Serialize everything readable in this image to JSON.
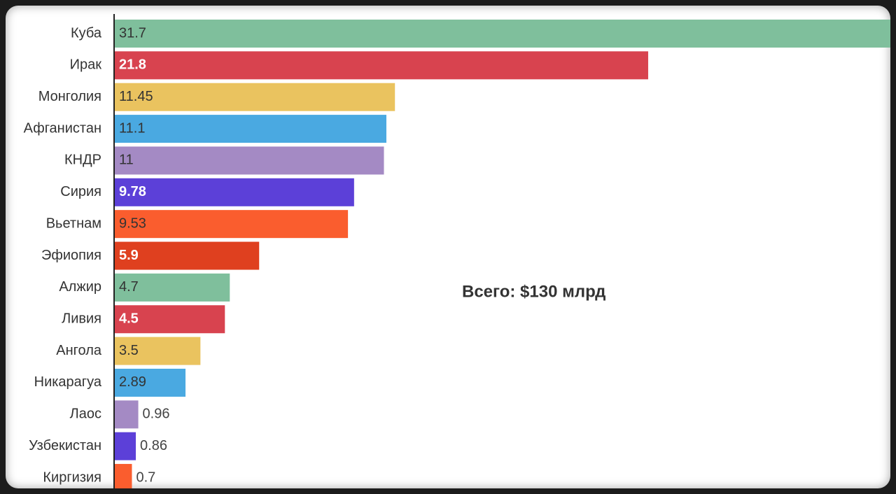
{
  "chart_data": {
    "type": "bar",
    "orientation": "horizontal",
    "categories": [
      "Куба",
      "Ирак",
      "Монголия",
      "Афганистан",
      "КНДР",
      "Сирия",
      "Вьетнам",
      "Эфиопия",
      "Алжир",
      "Ливия",
      "Ангола",
      "Никарагуа",
      "Лаос",
      "Узбекистан",
      "Киргизия"
    ],
    "values": [
      31.7,
      21.8,
      11.45,
      11.1,
      11,
      9.78,
      9.53,
      5.9,
      4.7,
      4.5,
      3.5,
      2.89,
      0.96,
      0.86,
      0.7
    ],
    "colors": [
      "#7fbf9c",
      "#d8434f",
      "#eac35f",
      "#4aa9e1",
      "#a48ac4",
      "#5c40d8",
      "#fa5d2e",
      "#df401f",
      "#7fbf9c",
      "#d8434f",
      "#eac35f",
      "#4aa9e1",
      "#a48ac4",
      "#5c40d8",
      "#fa5d2e"
    ],
    "xlim": [
      0,
      31.7
    ],
    "annotation": "Всего: $130 млрд"
  }
}
